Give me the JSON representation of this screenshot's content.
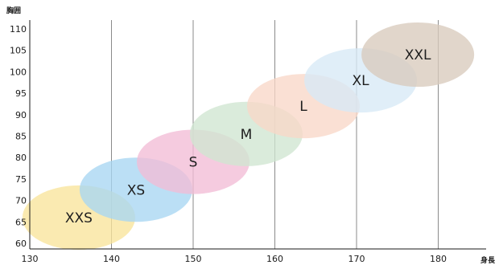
{
  "chart_data": {
    "type": "scatter",
    "title": "",
    "xlabel": "身長",
    "ylabel": "胸囲",
    "xlim": [
      130,
      185
    ],
    "ylim": [
      59,
      112
    ],
    "xticks": [
      130,
      140,
      150,
      160,
      170,
      180
    ],
    "yticks": [
      60,
      65,
      70,
      75,
      80,
      85,
      90,
      95,
      100,
      105,
      110
    ],
    "vertical_grid": [
      140,
      150,
      160,
      170,
      180
    ],
    "horizontal_grid": false,
    "series": [
      {
        "name": "XXS",
        "x": 136,
        "y": 66,
        "color": "#f9e49b",
        "x_halfwidth": 6.9,
        "y_halfheight": 7.5
      },
      {
        "name": "XS",
        "x": 143,
        "y": 72.5,
        "color": "#a8d6f2",
        "x_halfwidth": 6.9,
        "y_halfheight": 7.5
      },
      {
        "name": "S",
        "x": 150,
        "y": 79,
        "color": "#f2bdd6",
        "x_halfwidth": 6.9,
        "y_halfheight": 7.5
      },
      {
        "name": "M",
        "x": 156.5,
        "y": 85.5,
        "color": "#cfe5d1",
        "x_halfwidth": 6.9,
        "y_halfheight": 7.5
      },
      {
        "name": "L",
        "x": 163.5,
        "y": 92,
        "color": "#f9d7c8",
        "x_halfwidth": 6.9,
        "y_halfheight": 7.5
      },
      {
        "name": "XL",
        "x": 170.5,
        "y": 98,
        "color": "#d7e9f6",
        "x_halfwidth": 6.9,
        "y_halfheight": 7.5
      },
      {
        "name": "XXL",
        "x": 177.5,
        "y": 104,
        "color": "#d9cbbc",
        "x_halfwidth": 6.9,
        "y_halfheight": 7.5
      }
    ]
  }
}
